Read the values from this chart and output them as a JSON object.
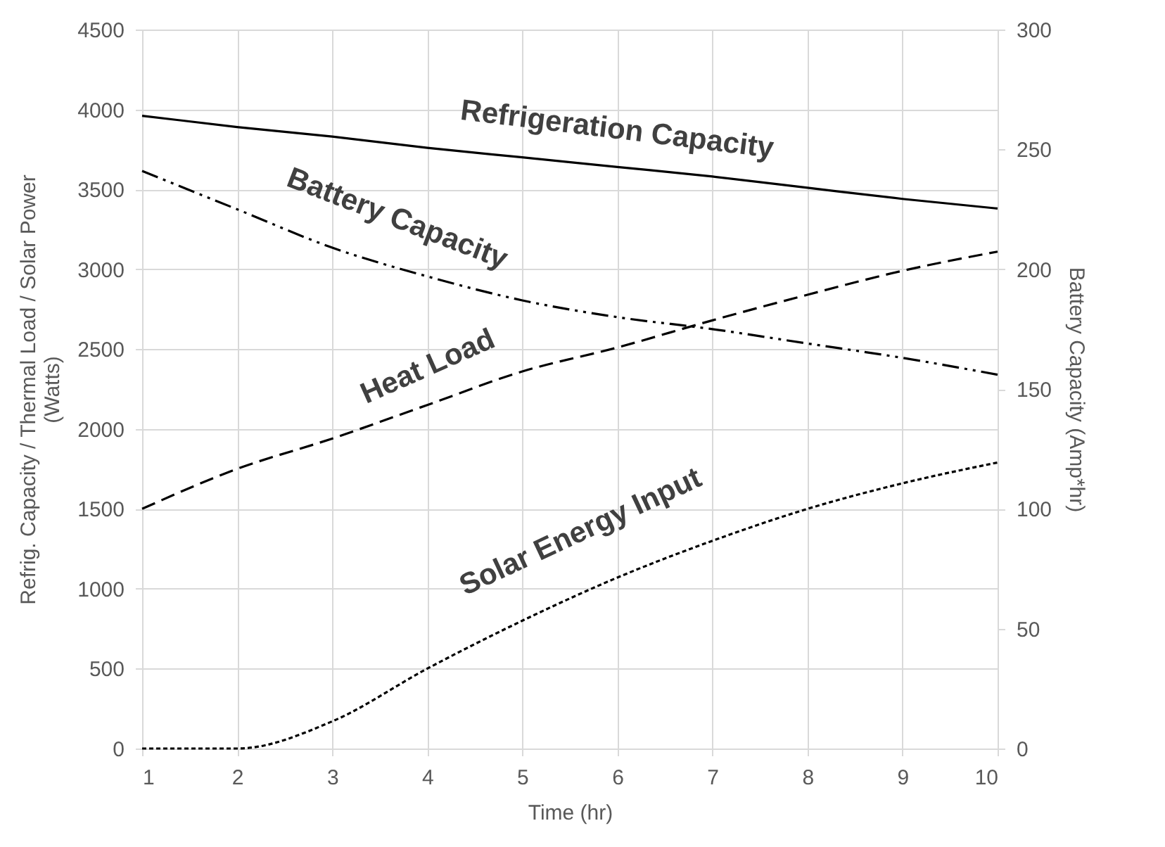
{
  "chart_data": {
    "type": "line",
    "xlabel": "Time (hr)",
    "ylabel": "Refrig. Capacity / Thermal Load / Solar Power (Watts)",
    "y2label": "Battery Capacity (Amp*hr)",
    "x": [
      1,
      2,
      3,
      4,
      5,
      6,
      7,
      8,
      9,
      10
    ],
    "series": [
      {
        "name": "Refrigeration Capacity",
        "color": "#000000",
        "line_style": "solid",
        "values": [
          3960,
          3890,
          3830,
          3760,
          3700,
          3640,
          3580,
          3510,
          3440,
          3380
        ]
      },
      {
        "name": "Battery Capacity",
        "color": "#000000",
        "line_style": "dashdot",
        "axis": "y2",
        "values": [
          241,
          225,
          209,
          197,
          187,
          180,
          175,
          169,
          163,
          156
        ]
      },
      {
        "name": "Heat Load",
        "color": "#000000",
        "line_style": "dashed",
        "values": [
          1500,
          1750,
          1940,
          2150,
          2360,
          2510,
          2680,
          2840,
          2990,
          3110
        ]
      },
      {
        "name": "Solar Energy Input",
        "color": "#000000",
        "line_style": "dotted",
        "values": [
          0,
          0,
          170,
          500,
          800,
          1070,
          1300,
          1500,
          1660,
          1790
        ]
      }
    ],
    "xlim": [
      1,
      10
    ],
    "xticks": [
      1,
      2,
      3,
      4,
      5,
      6,
      7,
      8,
      9,
      10
    ],
    "ylim": [
      0,
      4500
    ],
    "yticks": [
      0,
      500,
      1000,
      1500,
      2000,
      2500,
      3000,
      3500,
      4000,
      4500
    ],
    "y2lim": [
      0,
      300
    ],
    "y2ticks": [
      0,
      50,
      100,
      150,
      200,
      250,
      300
    ],
    "grid": true
  }
}
